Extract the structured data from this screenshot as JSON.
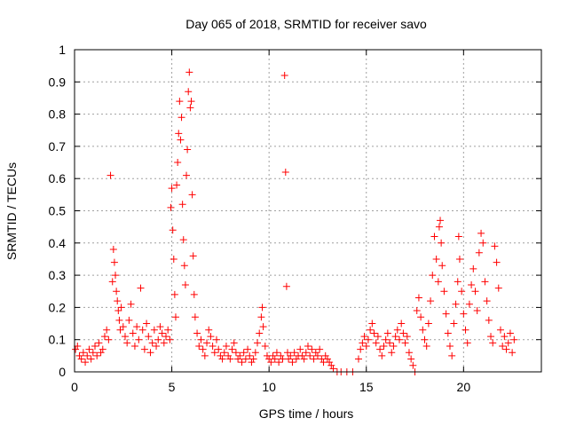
{
  "chart_data": {
    "type": "scatter",
    "title": "Day 065 of 2018, SRMTID for receiver savo",
    "xlabel": "GPS time / hours",
    "ylabel": "SRMTID / TECUs",
    "xlim": [
      0,
      24
    ],
    "ylim": [
      0,
      1
    ],
    "xticks": [
      0,
      5,
      10,
      15,
      20
    ],
    "yticks": [
      0,
      0.1,
      0.2,
      0.3,
      0.4,
      0.5,
      0.6,
      0.7,
      0.8,
      0.9,
      1
    ],
    "xtick_labels": [
      "0",
      "5",
      "10",
      "15",
      "20"
    ],
    "ytick_labels": [
      "0",
      "0.1",
      "0.2",
      "0.3",
      "0.4",
      "0.5",
      "0.6",
      "0.7",
      "0.8",
      "0.9",
      "1"
    ],
    "grid": true,
    "marker": "+",
    "color": "#ff0000",
    "series": [
      {
        "name": "SRMTID",
        "points": [
          [
            0.05,
            0.07
          ],
          [
            0.15,
            0.08
          ],
          [
            0.25,
            0.05
          ],
          [
            0.35,
            0.04
          ],
          [
            0.45,
            0.06
          ],
          [
            0.55,
            0.03
          ],
          [
            0.65,
            0.05
          ],
          [
            0.75,
            0.07
          ],
          [
            0.85,
            0.04
          ],
          [
            0.95,
            0.06
          ],
          [
            1.05,
            0.08
          ],
          [
            1.15,
            0.05
          ],
          [
            1.25,
            0.09
          ],
          [
            1.35,
            0.06
          ],
          [
            1.45,
            0.07
          ],
          [
            1.55,
            0.11
          ],
          [
            1.65,
            0.13
          ],
          [
            1.75,
            0.1
          ],
          [
            1.85,
            0.61
          ],
          [
            1.95,
            0.28
          ],
          [
            2.0,
            0.38
          ],
          [
            2.05,
            0.34
          ],
          [
            2.1,
            0.3
          ],
          [
            2.15,
            0.25
          ],
          [
            2.2,
            0.22
          ],
          [
            2.25,
            0.19
          ],
          [
            2.3,
            0.16
          ],
          [
            2.35,
            0.13
          ],
          [
            2.4,
            0.2
          ],
          [
            2.5,
            0.14
          ],
          [
            2.6,
            0.11
          ],
          [
            2.7,
            0.09
          ],
          [
            2.8,
            0.16
          ],
          [
            2.9,
            0.21
          ],
          [
            3.0,
            0.12
          ],
          [
            3.1,
            0.08
          ],
          [
            3.2,
            0.14
          ],
          [
            3.3,
            0.1
          ],
          [
            3.4,
            0.26
          ],
          [
            3.5,
            0.13
          ],
          [
            3.6,
            0.07
          ],
          [
            3.7,
            0.15
          ],
          [
            3.8,
            0.11
          ],
          [
            3.9,
            0.06
          ],
          [
            4.0,
            0.09
          ],
          [
            4.1,
            0.13
          ],
          [
            4.2,
            0.08
          ],
          [
            4.3,
            0.1
          ],
          [
            4.4,
            0.14
          ],
          [
            4.5,
            0.12
          ],
          [
            4.6,
            0.09
          ],
          [
            4.7,
            0.11
          ],
          [
            4.8,
            0.13
          ],
          [
            4.9,
            0.1
          ],
          [
            4.95,
            0.51
          ],
          [
            5.0,
            0.57
          ],
          [
            5.05,
            0.44
          ],
          [
            5.1,
            0.35
          ],
          [
            5.15,
            0.24
          ],
          [
            5.2,
            0.17
          ],
          [
            5.25,
            0.58
          ],
          [
            5.3,
            0.65
          ],
          [
            5.35,
            0.74
          ],
          [
            5.4,
            0.84
          ],
          [
            5.45,
            0.72
          ],
          [
            5.5,
            0.79
          ],
          [
            5.55,
            0.52
          ],
          [
            5.6,
            0.41
          ],
          [
            5.65,
            0.33
          ],
          [
            5.7,
            0.27
          ],
          [
            5.75,
            0.61
          ],
          [
            5.8,
            0.69
          ],
          [
            5.85,
            0.87
          ],
          [
            5.9,
            0.93
          ],
          [
            5.95,
            0.82
          ],
          [
            6.0,
            0.84
          ],
          [
            6.05,
            0.55
          ],
          [
            6.1,
            0.36
          ],
          [
            6.15,
            0.24
          ],
          [
            6.2,
            0.17
          ],
          [
            6.3,
            0.12
          ],
          [
            6.4,
            0.08
          ],
          [
            6.5,
            0.1
          ],
          [
            6.6,
            0.07
          ],
          [
            6.7,
            0.05
          ],
          [
            6.8,
            0.09
          ],
          [
            6.9,
            0.13
          ],
          [
            7.0,
            0.11
          ],
          [
            7.1,
            0.08
          ],
          [
            7.2,
            0.06
          ],
          [
            7.3,
            0.1
          ],
          [
            7.4,
            0.07
          ],
          [
            7.5,
            0.05
          ],
          [
            7.6,
            0.04
          ],
          [
            7.7,
            0.06
          ],
          [
            7.8,
            0.08
          ],
          [
            7.9,
            0.05
          ],
          [
            8.0,
            0.04
          ],
          [
            8.1,
            0.07
          ],
          [
            8.2,
            0.09
          ],
          [
            8.3,
            0.06
          ],
          [
            8.4,
            0.04
          ],
          [
            8.5,
            0.05
          ],
          [
            8.6,
            0.03
          ],
          [
            8.7,
            0.06
          ],
          [
            8.8,
            0.04
          ],
          [
            8.9,
            0.07
          ],
          [
            9.0,
            0.05
          ],
          [
            9.1,
            0.03
          ],
          [
            9.2,
            0.04
          ],
          [
            9.3,
            0.06
          ],
          [
            9.4,
            0.09
          ],
          [
            9.5,
            0.12
          ],
          [
            9.6,
            0.17
          ],
          [
            9.65,
            0.2
          ],
          [
            9.7,
            0.14
          ],
          [
            9.8,
            0.08
          ],
          [
            9.9,
            0.05
          ],
          [
            10.0,
            0.04
          ],
          [
            10.1,
            0.03
          ],
          [
            10.2,
            0.05
          ],
          [
            10.3,
            0.04
          ],
          [
            10.4,
            0.06
          ],
          [
            10.5,
            0.03
          ],
          [
            10.6,
            0.05
          ],
          [
            10.7,
            0.04
          ],
          [
            10.8,
            0.92
          ],
          [
            10.85,
            0.62
          ],
          [
            10.9,
            0.265
          ],
          [
            10.95,
            0.06
          ],
          [
            11.0,
            0.04
          ],
          [
            11.1,
            0.05
          ],
          [
            11.2,
            0.03
          ],
          [
            11.3,
            0.06
          ],
          [
            11.4,
            0.04
          ],
          [
            11.5,
            0.05
          ],
          [
            11.6,
            0.07
          ],
          [
            11.7,
            0.05
          ],
          [
            11.8,
            0.04
          ],
          [
            11.9,
            0.06
          ],
          [
            12.0,
            0.08
          ],
          [
            12.1,
            0.05
          ],
          [
            12.2,
            0.07
          ],
          [
            12.3,
            0.04
          ],
          [
            12.4,
            0.06
          ],
          [
            12.5,
            0.05
          ],
          [
            12.6,
            0.07
          ],
          [
            12.7,
            0.04
          ],
          [
            12.8,
            0.03
          ],
          [
            12.9,
            0.05
          ],
          [
            13.0,
            0.04
          ],
          [
            13.1,
            0.03
          ],
          [
            13.2,
            0.02
          ],
          [
            13.3,
            0.01
          ],
          [
            13.5,
            0.0
          ],
          [
            13.7,
            0.0
          ],
          [
            14.0,
            0.0
          ],
          [
            14.3,
            0.0
          ],
          [
            14.6,
            0.04
          ],
          [
            14.7,
            0.07
          ],
          [
            14.8,
            0.09
          ],
          [
            14.9,
            0.11
          ],
          [
            15.0,
            0.08
          ],
          [
            15.1,
            0.1
          ],
          [
            15.2,
            0.13
          ],
          [
            15.3,
            0.15
          ],
          [
            15.4,
            0.12
          ],
          [
            15.5,
            0.09
          ],
          [
            15.6,
            0.11
          ],
          [
            15.7,
            0.07
          ],
          [
            15.8,
            0.05
          ],
          [
            15.9,
            0.08
          ],
          [
            16.0,
            0.1
          ],
          [
            16.1,
            0.12
          ],
          [
            16.2,
            0.09
          ],
          [
            16.3,
            0.06
          ],
          [
            16.4,
            0.08
          ],
          [
            16.5,
            0.11
          ],
          [
            16.6,
            0.13
          ],
          [
            16.7,
            0.1
          ],
          [
            16.8,
            0.15
          ],
          [
            16.9,
            0.12
          ],
          [
            17.0,
            0.09
          ],
          [
            17.1,
            0.11
          ],
          [
            17.2,
            0.06
          ],
          [
            17.3,
            0.04
          ],
          [
            17.4,
            0.02
          ],
          [
            17.5,
            0.0
          ],
          [
            17.6,
            0.19
          ],
          [
            17.7,
            0.23
          ],
          [
            17.8,
            0.17
          ],
          [
            17.9,
            0.13
          ],
          [
            18.0,
            0.1
          ],
          [
            18.1,
            0.08
          ],
          [
            18.2,
            0.15
          ],
          [
            18.3,
            0.22
          ],
          [
            18.4,
            0.3
          ],
          [
            18.5,
            0.42
          ],
          [
            18.6,
            0.35
          ],
          [
            18.7,
            0.28
          ],
          [
            18.75,
            0.45
          ],
          [
            18.8,
            0.47
          ],
          [
            18.85,
            0.4
          ],
          [
            18.9,
            0.33
          ],
          [
            19.0,
            0.25
          ],
          [
            19.1,
            0.18
          ],
          [
            19.2,
            0.12
          ],
          [
            19.3,
            0.08
          ],
          [
            19.4,
            0.05
          ],
          [
            19.5,
            0.15
          ],
          [
            19.6,
            0.21
          ],
          [
            19.7,
            0.28
          ],
          [
            19.75,
            0.42
          ],
          [
            19.8,
            0.35
          ],
          [
            19.9,
            0.25
          ],
          [
            20.0,
            0.18
          ],
          [
            20.1,
            0.13
          ],
          [
            20.2,
            0.09
          ],
          [
            20.3,
            0.21
          ],
          [
            20.4,
            0.27
          ],
          [
            20.5,
            0.32
          ],
          [
            20.6,
            0.25
          ],
          [
            20.7,
            0.19
          ],
          [
            20.8,
            0.37
          ],
          [
            20.9,
            0.43
          ],
          [
            21.0,
            0.4
          ],
          [
            21.1,
            0.28
          ],
          [
            21.2,
            0.22
          ],
          [
            21.3,
            0.16
          ],
          [
            21.4,
            0.11
          ],
          [
            21.5,
            0.09
          ],
          [
            21.6,
            0.39
          ],
          [
            21.7,
            0.34
          ],
          [
            21.8,
            0.26
          ],
          [
            21.9,
            0.13
          ],
          [
            22.0,
            0.08
          ],
          [
            22.1,
            0.11
          ],
          [
            22.2,
            0.07
          ],
          [
            22.3,
            0.09
          ],
          [
            22.4,
            0.12
          ],
          [
            22.5,
            0.06
          ],
          [
            22.6,
            0.1
          ]
        ]
      }
    ]
  }
}
